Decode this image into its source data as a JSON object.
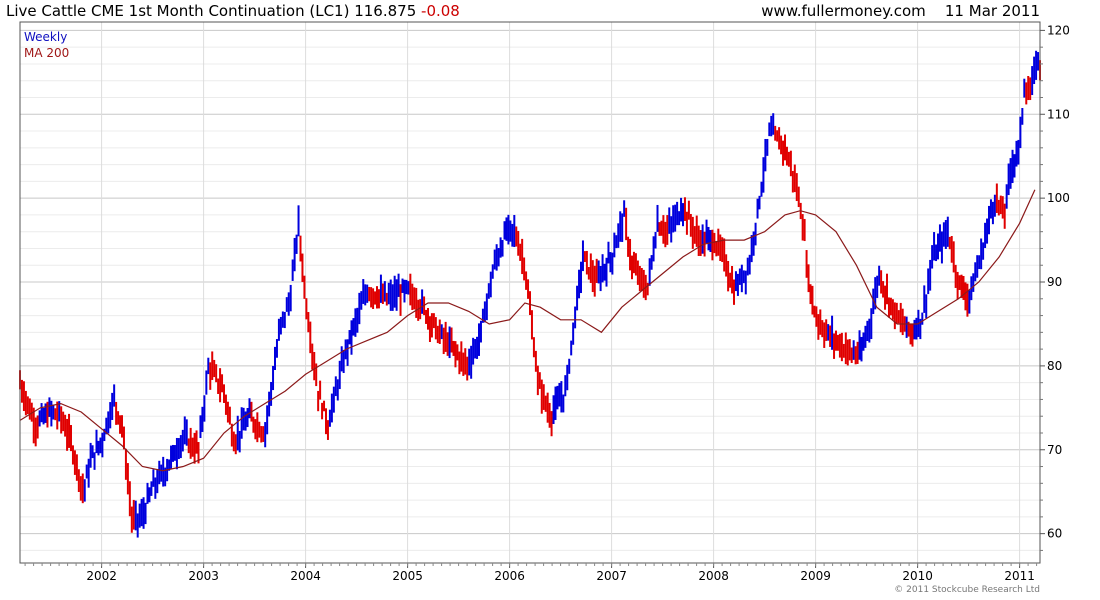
{
  "header": {
    "instrument": "Live Cattle CME 1st Month Continuation (LC1)",
    "last": "116.875",
    "change": "-0.08",
    "source": "www.fullermoney.com",
    "date": "11 Mar 2011"
  },
  "footer": {
    "copyright": "© 2011 Stockcube Research Ltd"
  },
  "colors": {
    "up": "#0000dd",
    "down": "#e00000",
    "ma": "#8b1a1a",
    "grid": "#dddddd"
  },
  "chart_data": {
    "type": "line",
    "series_type": "weekly-bars",
    "legend": [
      "Weekly",
      "MA 200"
    ],
    "legend_position": "top-left",
    "grid": true,
    "y_axis_side": "right",
    "ylim": [
      56.5,
      121
    ],
    "y_ticks": [
      60,
      70,
      80,
      90,
      100,
      110,
      120
    ],
    "x_ticks": [
      "2002",
      "2003",
      "2004",
      "2005",
      "2006",
      "2007",
      "2008",
      "2009",
      "2010",
      "2011"
    ],
    "xlim": [
      2001.2,
      2011.2
    ],
    "series": [
      {
        "name": "Weekly",
        "x": [
          2001.2,
          2001.35,
          2001.5,
          2001.6,
          2001.7,
          2001.82,
          2001.9,
          2002.0,
          2002.12,
          2002.2,
          2002.3,
          2002.4,
          2002.5,
          2002.62,
          2002.8,
          2002.95,
          2003.05,
          2003.2,
          2003.3,
          2003.45,
          2003.6,
          2003.75,
          2003.85,
          2003.93,
          2004.0,
          2004.12,
          2004.22,
          2004.4,
          2004.6,
          2004.8,
          2005.0,
          2005.15,
          2005.3,
          2005.45,
          2005.58,
          2005.7,
          2005.85,
          2005.97,
          2006.05,
          2006.15,
          2006.28,
          2006.4,
          2006.55,
          2006.62,
          2006.72,
          2006.85,
          2007.0,
          2007.12,
          2007.2,
          2007.35,
          2007.45,
          2007.55,
          2007.7,
          2007.85,
          2008.0,
          2008.1,
          2008.2,
          2008.35,
          2008.45,
          2008.55,
          2008.7,
          2008.8,
          2008.88,
          2008.92,
          2009.0,
          2009.1,
          2009.2,
          2009.35,
          2009.45,
          2009.5,
          2009.55,
          2009.62,
          2009.75,
          2009.85,
          2009.95,
          2010.05,
          2010.15,
          2010.3,
          2010.4,
          2010.5,
          2010.62,
          2010.75,
          2010.85,
          2010.92,
          2011.0,
          2011.05,
          2011.1,
          2011.16
        ],
        "values": [
          78.0,
          73.0,
          74.5,
          74.0,
          71.0,
          65.0,
          69.0,
          71.0,
          76.0,
          73.0,
          61.5,
          62.0,
          65.5,
          67.5,
          71.5,
          70.0,
          80.0,
          77.0,
          71.0,
          74.0,
          72.0,
          84.5,
          88.0,
          97.0,
          88.0,
          77.0,
          73.0,
          82.0,
          89.0,
          88.0,
          89.0,
          87.0,
          84.0,
          82.0,
          80.0,
          83.0,
          92.0,
          96.0,
          96.0,
          92.0,
          78.0,
          74.0,
          77.0,
          84.0,
          93.0,
          90.0,
          93.0,
          98.0,
          92.0,
          89.0,
          97.0,
          96.0,
          99.0,
          95.0,
          95.0,
          93.0,
          89.0,
          92.0,
          100.0,
          108.0,
          106.0,
          102.0,
          97.0,
          91.0,
          86.0,
          84.0,
          83.0,
          81.5,
          81.5,
          84.0,
          86.0,
          91.0,
          87.0,
          85.0,
          84.0,
          86.0,
          93.0,
          96.0,
          90.0,
          88.0,
          93.0,
          100.0,
          98.0,
          104.0,
          106.0,
          114.0,
          112.0,
          116.0
        ]
      },
      {
        "name": "MA 200",
        "x": [
          2001.2,
          2001.4,
          2001.6,
          2001.8,
          2002.0,
          2002.2,
          2002.4,
          2002.6,
          2002.8,
          2003.0,
          2003.2,
          2003.4,
          2003.6,
          2003.8,
          2004.0,
          2004.2,
          2004.4,
          2004.6,
          2004.8,
          2005.0,
          2005.2,
          2005.4,
          2005.6,
          2005.8,
          2006.0,
          2006.15,
          2006.3,
          2006.5,
          2006.7,
          2006.9,
          2007.1,
          2007.3,
          2007.5,
          2007.7,
          2007.9,
          2008.1,
          2008.3,
          2008.5,
          2008.7,
          2008.85,
          2009.0,
          2009.2,
          2009.4,
          2009.6,
          2009.8,
          2010.0,
          2010.2,
          2010.4,
          2010.6,
          2010.8,
          2011.0,
          2011.15
        ],
        "values": [
          73.5,
          75.0,
          75.5,
          74.5,
          72.5,
          70.5,
          68.0,
          67.5,
          68.0,
          69.0,
          72.0,
          74.0,
          75.5,
          77.0,
          79.0,
          80.5,
          82.0,
          83.0,
          84.0,
          86.0,
          87.5,
          87.5,
          86.5,
          85.0,
          85.5,
          87.5,
          87.0,
          85.5,
          85.5,
          84.0,
          87.0,
          89.0,
          91.0,
          93.0,
          94.5,
          95.0,
          95.0,
          96.0,
          98.0,
          98.5,
          98.0,
          96.0,
          92.0,
          87.0,
          85.0,
          85.0,
          86.5,
          88.0,
          90.0,
          93.0,
          97.0,
          101.0
        ]
      }
    ]
  }
}
